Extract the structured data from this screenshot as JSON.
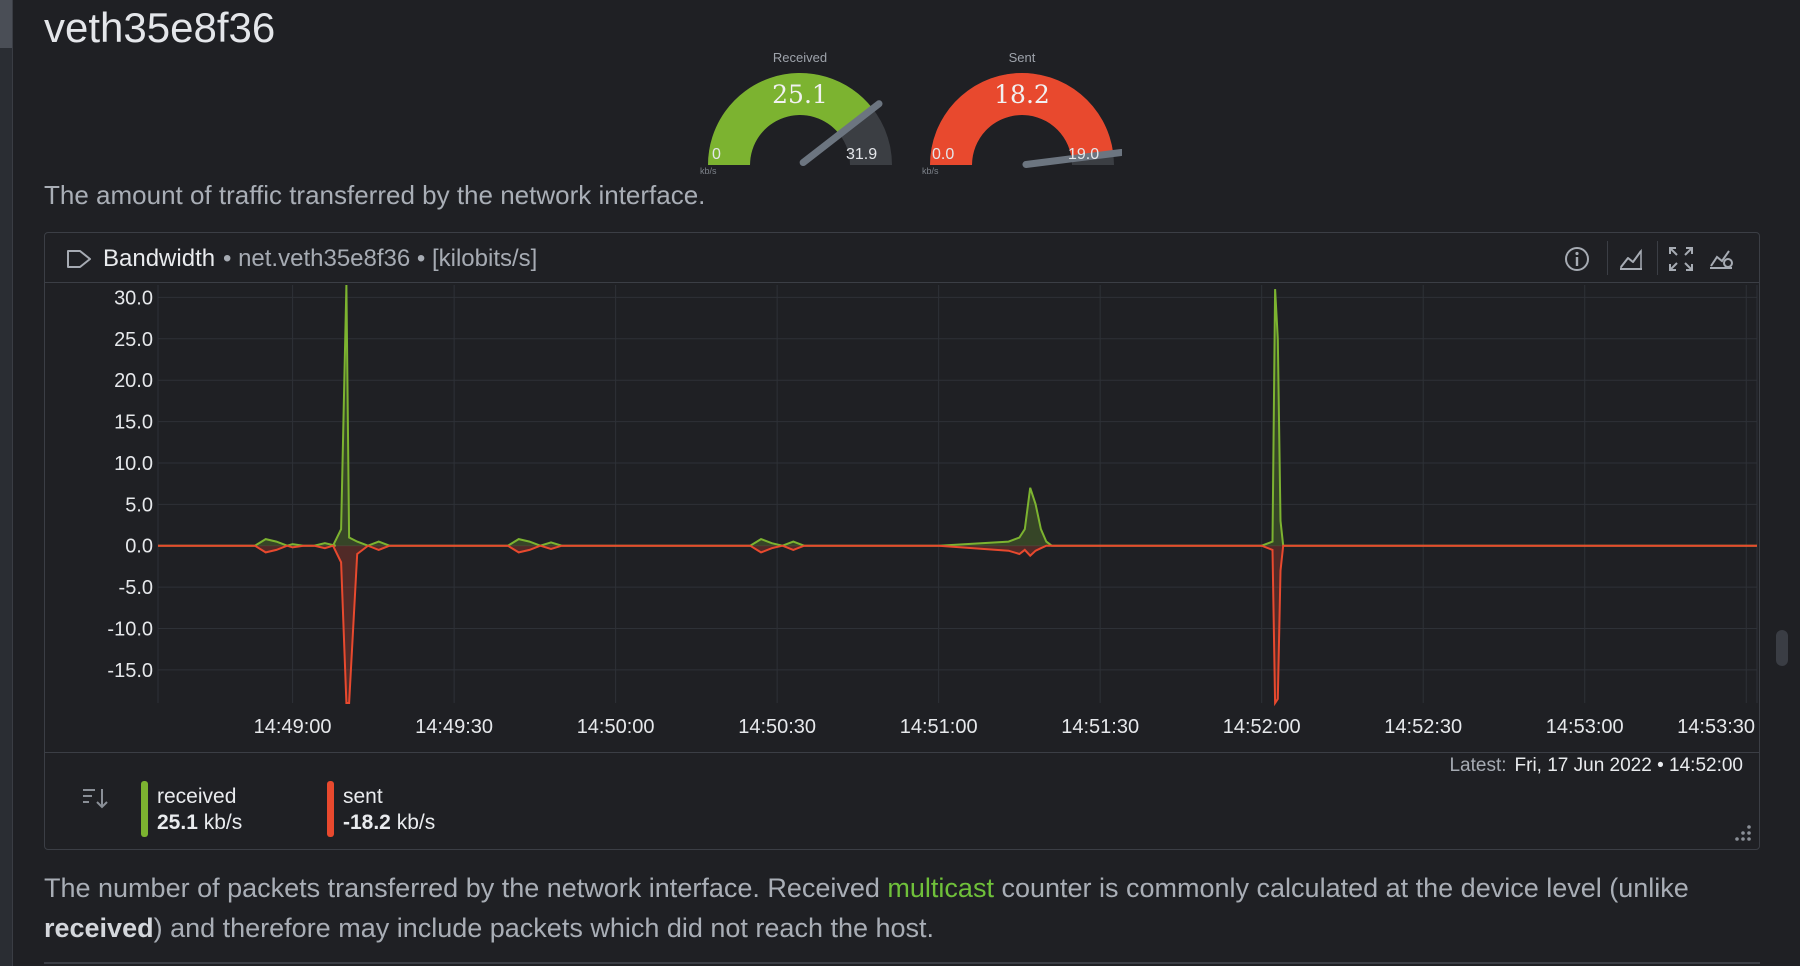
{
  "page": {
    "title": "veth35e8f36",
    "description": "The amount of traffic transferred by the network interface."
  },
  "gauges": [
    {
      "title": "Received",
      "value": "25.1",
      "min": "0",
      "max": "31.9",
      "unit": "kb/s",
      "fraction": 0.79,
      "color": "#7cb330"
    },
    {
      "title": "Sent",
      "value": "18.2",
      "min": "0.0",
      "max": "19.0",
      "unit": "kb/s",
      "fraction": 0.96,
      "color": "#e8492e"
    }
  ],
  "panel": {
    "title": "Bandwidth",
    "context": "• net.veth35e8f36 • [kilobits/s]",
    "latest_label": "Latest:",
    "latest_value": "Fri, 17 Jun 2022 • 14:52:00",
    "icons": [
      "info-icon",
      "line-chart-icon",
      "fullscreen-icon",
      "chart-settings-icon"
    ]
  },
  "legend": [
    {
      "name": "received",
      "value": "25.1",
      "unit": "kb/s",
      "color": "#7cb330"
    },
    {
      "name": "sent",
      "value": "-18.2",
      "unit": "kb/s",
      "color": "#e8492e"
    }
  ],
  "chart_data": {
    "type": "area",
    "ylim": [
      -19,
      31.5
    ],
    "yticks": [
      "30.0",
      "25.0",
      "20.0",
      "15.0",
      "10.0",
      "5.0",
      "0.0",
      "-5.0",
      "-10.0",
      "-15.0"
    ],
    "ytick_values": [
      30,
      25,
      20,
      15,
      10,
      5,
      0,
      -5,
      -10,
      -15
    ],
    "xticks": [
      "14:49:00",
      "14:49:30",
      "14:50:00",
      "14:50:30",
      "14:51:00",
      "14:51:30",
      "14:52:00",
      "14:52:30",
      "14:53:00",
      "14:53:30"
    ],
    "xtick_values": [
      0,
      30,
      60,
      90,
      120,
      150,
      180,
      210,
      240,
      270
    ],
    "xlim": [
      -25,
      272
    ],
    "grid": true,
    "series": [
      {
        "name": "received",
        "color": "#7cb330",
        "x": [
          -25,
          -7,
          -5,
          -3,
          -1,
          0,
          2,
          4,
          6,
          8,
          7.5,
          9,
          10,
          10.5,
          12,
          14,
          16,
          18,
          20,
          22,
          40,
          42,
          44,
          46,
          48,
          50,
          85,
          87,
          89,
          91,
          93,
          95,
          120,
          133,
          135,
          136,
          137,
          138,
          139,
          140,
          141,
          142,
          180,
          182,
          182.5,
          183,
          183.5,
          184,
          272
        ],
        "y": [
          0,
          0,
          0.8,
          0.5,
          0,
          0.2,
          0,
          0,
          0.3,
          0,
          0,
          2,
          31.5,
          1,
          0.5,
          0,
          0.5,
          0,
          0,
          0,
          0,
          0.8,
          0.5,
          0,
          0.4,
          0,
          0,
          0.8,
          0.3,
          0,
          0.5,
          0,
          0,
          0.5,
          1,
          2,
          7,
          5,
          2,
          0.5,
          0,
          0,
          0,
          0.5,
          31,
          25,
          3,
          0,
          0
        ]
      },
      {
        "name": "sent",
        "color": "#e8492e",
        "x": [
          -25,
          -7,
          -5,
          -3,
          -1,
          0,
          2,
          4,
          6,
          7.5,
          9,
          10,
          10.5,
          12,
          14,
          16,
          18,
          20,
          22,
          40,
          42,
          44,
          46,
          48,
          50,
          85,
          87,
          89,
          91,
          93,
          95,
          120,
          133,
          135,
          136,
          137,
          138,
          139,
          140,
          141,
          142,
          180,
          182,
          182.5,
          183,
          183.5,
          184,
          272
        ],
        "y": [
          0,
          0,
          -0.8,
          -0.5,
          0,
          -0.2,
          0,
          0,
          -0.3,
          0,
          -2,
          -19,
          -19,
          -1,
          0,
          -0.5,
          0,
          0,
          0,
          0,
          -0.8,
          -0.5,
          0,
          -0.4,
          0,
          0,
          -0.8,
          -0.3,
          0,
          -0.5,
          0,
          0,
          -0.6,
          -1,
          -0.5,
          -1.2,
          -0.6,
          -0.3,
          0,
          0,
          0,
          0,
          -0.5,
          -19,
          -18.5,
          -3,
          0,
          0
        ]
      }
    ]
  },
  "footer": {
    "before": "The number of packets transferred by the network interface. Received ",
    "highlight": "multicast",
    "middle": " counter is commonly calculated at the device level (unlike ",
    "bold": "received",
    "after": ") and therefore may include packets which did not reach the host."
  }
}
